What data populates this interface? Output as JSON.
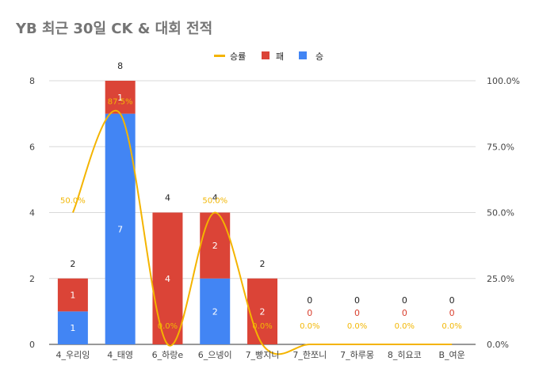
{
  "chart_data": {
    "type": "bar",
    "stacked": true,
    "title": "YB 최근 30일 CK & 대회 전적",
    "categories": [
      "4_우리잉",
      "4_태영",
      "6_하랑e",
      "6_으넹이",
      "7_빵지니",
      "7_한쪼니",
      "7_하루몽",
      "8_히요코",
      "B_여운"
    ],
    "series": [
      {
        "name": "승",
        "color": "#4285f4",
        "values": [
          1,
          7,
          0,
          2,
          0,
          0,
          0,
          0,
          0
        ]
      },
      {
        "name": "패",
        "color": "#db4437",
        "values": [
          1,
          1,
          4,
          2,
          2,
          0,
          0,
          0,
          0
        ]
      }
    ],
    "line_series": {
      "name": "승률",
      "color": "#f4b400",
      "axis": "right",
      "values": [
        50.0,
        87.5,
        0.0,
        50.0,
        0.0,
        0.0,
        0.0,
        0.0,
        0.0
      ]
    },
    "totals": [
      "2",
      "8",
      "4",
      "4",
      "2",
      "0",
      "0",
      "0",
      "0"
    ],
    "win_labels": [
      "1",
      "7",
      "",
      "2",
      "",
      "",
      "",
      "",
      ""
    ],
    "loss_labels": [
      "1",
      "1",
      "4",
      "2",
      "2",
      "0",
      "0",
      "0",
      "0"
    ],
    "pct_labels": [
      "50.0%",
      "87.5%",
      "0.0%",
      "50.0%",
      "0.0%",
      "0.0%",
      "0.0%",
      "0.0%",
      "0.0%"
    ],
    "ylim": [
      0,
      8
    ],
    "yticks": [
      "0",
      "2",
      "4",
      "6",
      "8"
    ],
    "y2lim": [
      0,
      100
    ],
    "y2ticks": [
      "0.0%",
      "25.0%",
      "50.0%",
      "75.0%",
      "100.0%"
    ],
    "legend": {
      "position": "top",
      "items": [
        "승률",
        "패",
        "승"
      ]
    },
    "grid": true
  }
}
